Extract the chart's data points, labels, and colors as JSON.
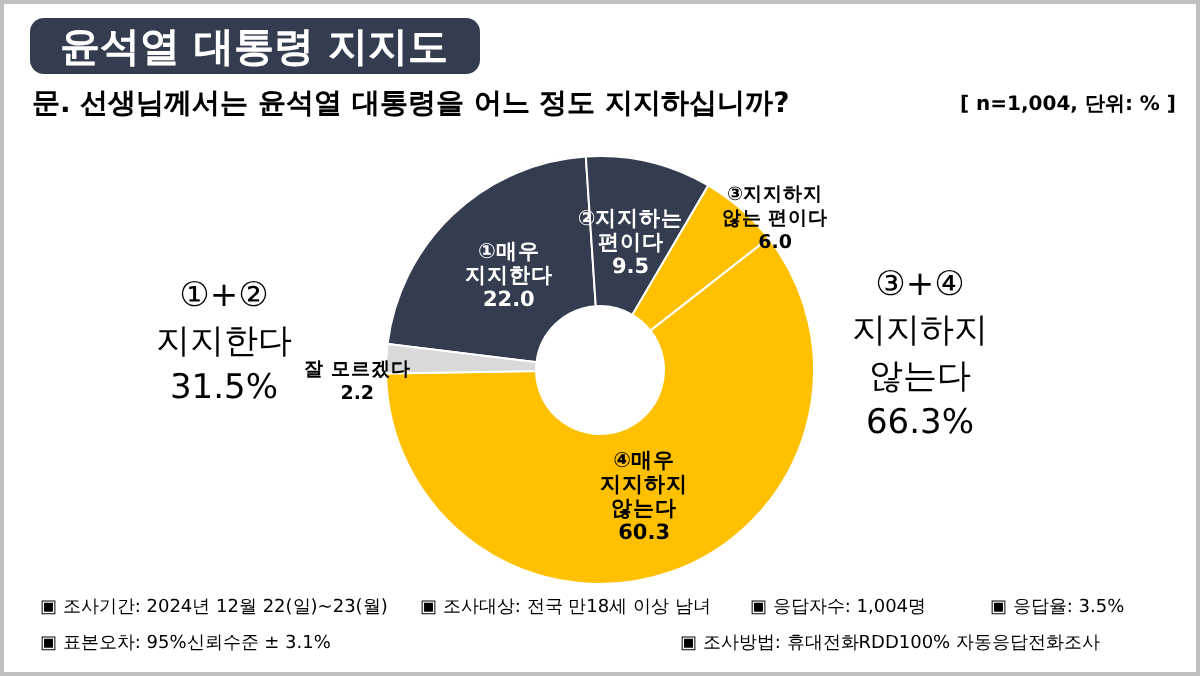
{
  "chart_data": {
    "type": "donut",
    "title": "윤석열 대통령 지지도",
    "subtitle": "문. 선생님께서는 윤석열 대통령을 어느 정도 지지하십니까?",
    "categories": [
      "①매우\n지지한다",
      "②지지하는\n편이다",
      "③지지하지\n않는 편이다",
      "④매우\n지지하지\n않는다",
      "잘 모르겠다"
    ],
    "values": [
      22.0,
      9.5,
      6.0,
      60.3,
      2.2
    ],
    "value_labels": [
      "22.0",
      "9.5",
      "6.0",
      "60.3",
      "2.2"
    ],
    "colors": [
      "#333d4f",
      "#333d4f",
      "#ffc000",
      "#ffc000",
      "#d9d9d9"
    ],
    "annotations": [
      "[ n=1,004, 단위: % ]",
      "①+②\n지지한다\n31.5%",
      "③+④\n지지하지\n않는다\n66.3%",
      "▣ 조사기간: 2024년 12월 22(일)~23(월)",
      "▣ 조사대상: 전국 만18세 이상 남녀",
      "▣ 응답자수: 1,004명",
      "▣ 응답율: 3.5%",
      "▣ 표본오차: 95%신뢰수준 ± 3.1%",
      "▣ 조사방법: 휴대전화RDD100% 자동응답전화조사"
    ]
  }
}
